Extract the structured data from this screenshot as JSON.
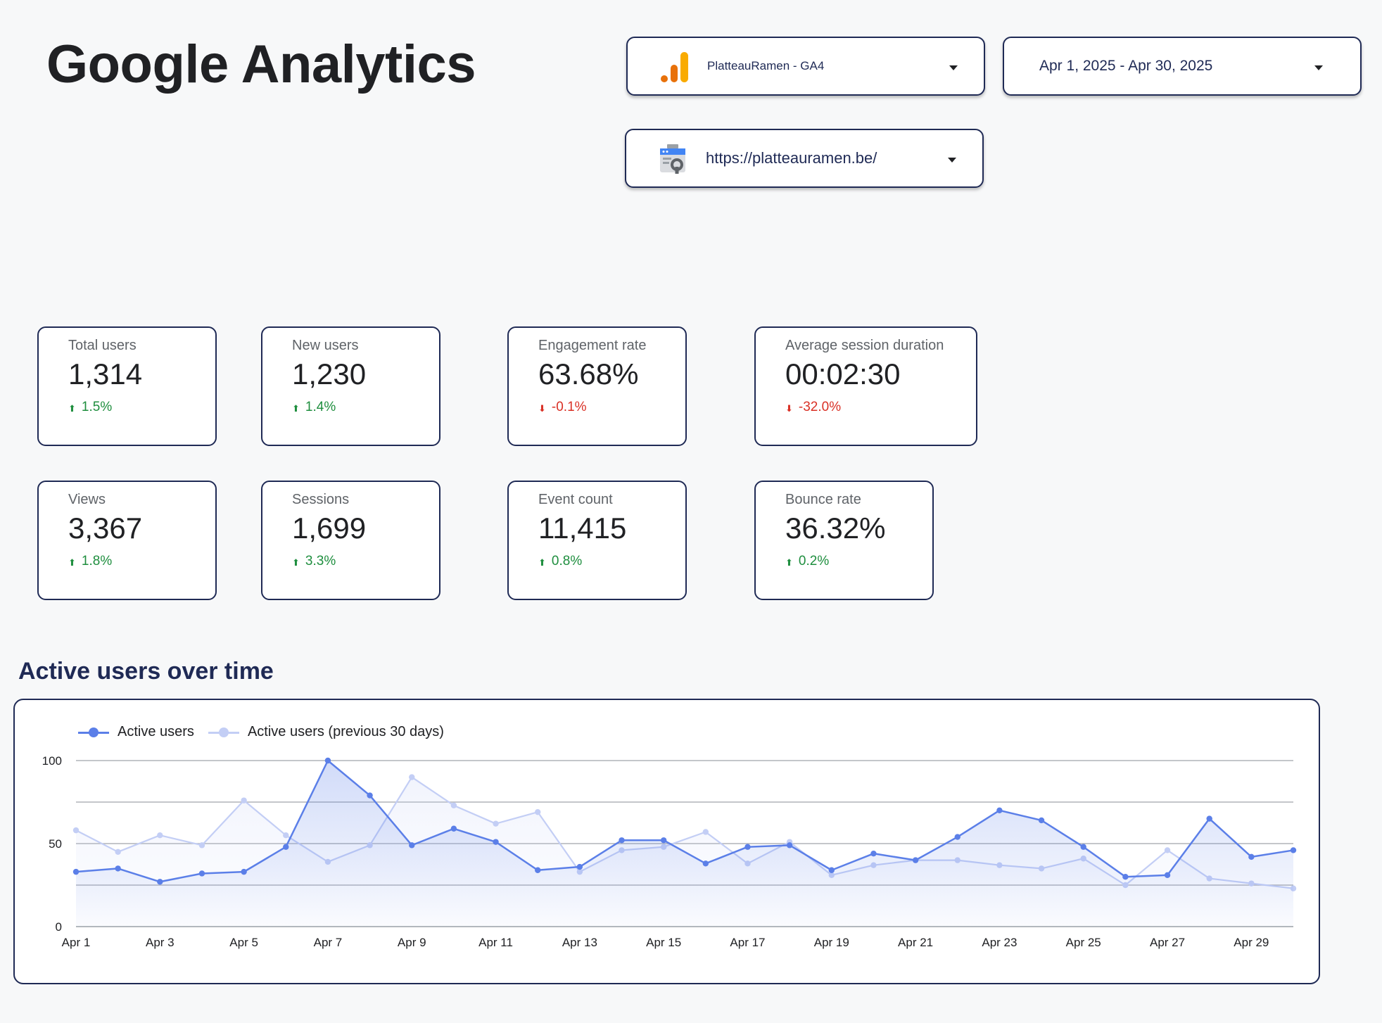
{
  "page": {
    "title": "Google Analytics"
  },
  "selectors": {
    "property": {
      "label": "PlatteauRamen - GA4",
      "icon": "analytics-icon"
    },
    "date_range": {
      "label": "Apr 1, 2025 - Apr 30, 2025"
    },
    "site": {
      "label": "https://platteauramen.be/",
      "icon": "search-console-icon"
    }
  },
  "kpis": [
    {
      "label": "Total users",
      "value": "1,314",
      "delta": "1.5%",
      "direction": "up"
    },
    {
      "label": "New users",
      "value": "1,230",
      "delta": "1.4%",
      "direction": "up"
    },
    {
      "label": "Engagement rate",
      "value": "63.68%",
      "delta": "-0.1%",
      "direction": "down"
    },
    {
      "label": "Average session duration",
      "value": "00:02:30",
      "delta": "-32.0%",
      "direction": "down"
    },
    {
      "label": "Views",
      "value": "3,367",
      "delta": "1.8%",
      "direction": "up"
    },
    {
      "label": "Sessions",
      "value": "1,699",
      "delta": "3.3%",
      "direction": "up"
    },
    {
      "label": "Event count",
      "value": "11,415",
      "delta": "0.8%",
      "direction": "up"
    },
    {
      "label": "Bounce rate",
      "value": "36.32%",
      "delta": "0.2%",
      "direction": "up"
    }
  ],
  "colors": {
    "up": "#1e8e3e",
    "down": "#d93025",
    "border": "#1f2a55",
    "series_current": "#5b7fe8",
    "series_previous": "#c3cef5"
  },
  "chart_section": {
    "title": "Active users over time"
  },
  "chart_data": {
    "type": "line",
    "title": "Active users over time",
    "x": [
      "Apr 1",
      "Apr 2",
      "Apr 3",
      "Apr 4",
      "Apr 5",
      "Apr 6",
      "Apr 7",
      "Apr 8",
      "Apr 9",
      "Apr 10",
      "Apr 11",
      "Apr 12",
      "Apr 13",
      "Apr 14",
      "Apr 15",
      "Apr 16",
      "Apr 17",
      "Apr 18",
      "Apr 19",
      "Apr 20",
      "Apr 21",
      "Apr 22",
      "Apr 23",
      "Apr 24",
      "Apr 25",
      "Apr 26",
      "Apr 27",
      "Apr 28",
      "Apr 29",
      "Apr 30"
    ],
    "x_tick_labels": [
      "Apr 1",
      "Apr 3",
      "Apr 5",
      "Apr 7",
      "Apr 9",
      "Apr 11",
      "Apr 13",
      "Apr 15",
      "Apr 17",
      "Apr 19",
      "Apr 21",
      "Apr 23",
      "Apr 25",
      "Apr 27",
      "Apr 29"
    ],
    "y_ticks": [
      0,
      50,
      100
    ],
    "ylim": [
      0,
      100
    ],
    "series": [
      {
        "name": "Active users",
        "values": [
          33,
          35,
          27,
          32,
          33,
          48,
          100,
          79,
          49,
          59,
          51,
          34,
          36,
          52,
          52,
          38,
          48,
          49,
          34,
          44,
          40,
          54,
          70,
          64,
          48,
          30,
          31,
          65,
          42,
          46
        ]
      },
      {
        "name": "Active users (previous 30 days)",
        "values": [
          58,
          45,
          55,
          49,
          76,
          55,
          39,
          49,
          90,
          73,
          62,
          69,
          33,
          46,
          48,
          57,
          38,
          51,
          31,
          37,
          40,
          40,
          37,
          35,
          41,
          25,
          46,
          29,
          26,
          23
        ]
      }
    ],
    "legend": "top-left",
    "grid": true
  }
}
